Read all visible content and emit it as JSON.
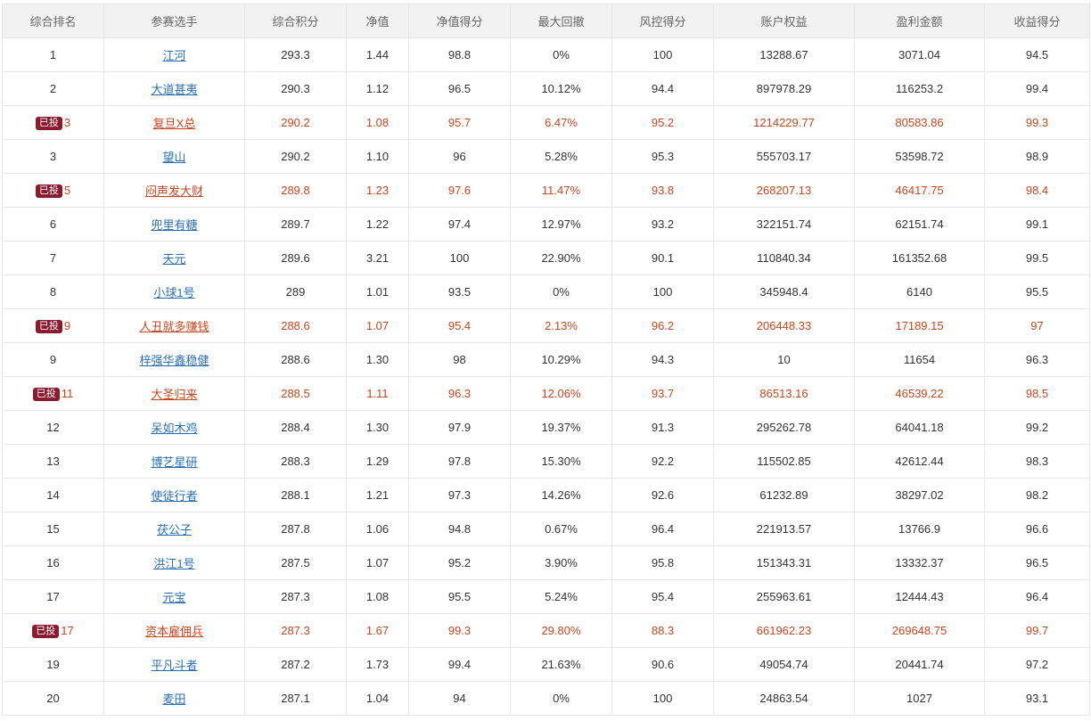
{
  "headers": [
    "综合排名",
    "参赛选手",
    "综合积分",
    "净值",
    "净值得分",
    "最大回撤",
    "风控得分",
    "账户权益",
    "盈利金额",
    "收益得分"
  ],
  "badge_label": "已投",
  "accent_colors": {
    "link": "#2a6fb5",
    "invested_text": "#c9451c",
    "badge_bg": "#8b1a2e",
    "header_bg": "#f2f2f2"
  },
  "rows": [
    {
      "rank": "1",
      "invested": false,
      "player": "江河",
      "score": "293.3",
      "nav": "1.44",
      "nav_score": "98.8",
      "max_drawdown": "0%",
      "risk_score": "100",
      "equity": "13288.67",
      "profit": "3071.04",
      "return_score": "94.5"
    },
    {
      "rank": "2",
      "invested": false,
      "player": "大道甚夷",
      "score": "290.3",
      "nav": "1.12",
      "nav_score": "96.5",
      "max_drawdown": "10.12%",
      "risk_score": "94.4",
      "equity": "897978.29",
      "profit": "116253.2",
      "return_score": "99.4"
    },
    {
      "rank": "3",
      "invested": true,
      "player": "复旦X总",
      "score": "290.2",
      "nav": "1.08",
      "nav_score": "95.7",
      "max_drawdown": "6.47%",
      "risk_score": "95.2",
      "equity": "1214229.77",
      "profit": "80583.86",
      "return_score": "99.3"
    },
    {
      "rank": "3",
      "invested": false,
      "player": "望山",
      "score": "290.2",
      "nav": "1.10",
      "nav_score": "96",
      "max_drawdown": "5.28%",
      "risk_score": "95.3",
      "equity": "555703.17",
      "profit": "53598.72",
      "return_score": "98.9"
    },
    {
      "rank": "5",
      "invested": true,
      "player": "闷声发大财",
      "score": "289.8",
      "nav": "1.23",
      "nav_score": "97.6",
      "max_drawdown": "11.47%",
      "risk_score": "93.8",
      "equity": "268207.13",
      "profit": "46417.75",
      "return_score": "98.4"
    },
    {
      "rank": "6",
      "invested": false,
      "player": "兜里有糖",
      "score": "289.7",
      "nav": "1.22",
      "nav_score": "97.4",
      "max_drawdown": "12.97%",
      "risk_score": "93.2",
      "equity": "322151.74",
      "profit": "62151.74",
      "return_score": "99.1"
    },
    {
      "rank": "7",
      "invested": false,
      "player": "天元",
      "score": "289.6",
      "nav": "3.21",
      "nav_score": "100",
      "max_drawdown": "22.90%",
      "risk_score": "90.1",
      "equity": "110840.34",
      "profit": "161352.68",
      "return_score": "99.5"
    },
    {
      "rank": "8",
      "invested": false,
      "player": "小球1号",
      "score": "289",
      "nav": "1.01",
      "nav_score": "93.5",
      "max_drawdown": "0%",
      "risk_score": "100",
      "equity": "345948.4",
      "profit": "6140",
      "return_score": "95.5"
    },
    {
      "rank": "9",
      "invested": true,
      "player": "人丑就多赚钱",
      "score": "288.6",
      "nav": "1.07",
      "nav_score": "95.4",
      "max_drawdown": "2.13%",
      "risk_score": "96.2",
      "equity": "206448.33",
      "profit": "17189.15",
      "return_score": "97"
    },
    {
      "rank": "9",
      "invested": false,
      "player": "梓强华鑫稳健",
      "score": "288.6",
      "nav": "1.30",
      "nav_score": "98",
      "max_drawdown": "10.29%",
      "risk_score": "94.3",
      "equity": "10",
      "profit": "11654",
      "return_score": "96.3"
    },
    {
      "rank": "11",
      "invested": true,
      "player": "大圣归来",
      "score": "288.5",
      "nav": "1.11",
      "nav_score": "96.3",
      "max_drawdown": "12.06%",
      "risk_score": "93.7",
      "equity": "86513.16",
      "profit": "46539.22",
      "return_score": "98.5"
    },
    {
      "rank": "12",
      "invested": false,
      "player": "呆如木鸡",
      "score": "288.4",
      "nav": "1.30",
      "nav_score": "97.9",
      "max_drawdown": "19.37%",
      "risk_score": "91.3",
      "equity": "295262.78",
      "profit": "64041.18",
      "return_score": "99.2"
    },
    {
      "rank": "13",
      "invested": false,
      "player": "博艺星研",
      "score": "288.3",
      "nav": "1.29",
      "nav_score": "97.8",
      "max_drawdown": "15.30%",
      "risk_score": "92.2",
      "equity": "115502.85",
      "profit": "42612.44",
      "return_score": "98.3"
    },
    {
      "rank": "14",
      "invested": false,
      "player": "使徒行者",
      "score": "288.1",
      "nav": "1.21",
      "nav_score": "97.3",
      "max_drawdown": "14.26%",
      "risk_score": "92.6",
      "equity": "61232.89",
      "profit": "38297.02",
      "return_score": "98.2"
    },
    {
      "rank": "15",
      "invested": false,
      "player": "茯公子",
      "score": "287.8",
      "nav": "1.06",
      "nav_score": "94.8",
      "max_drawdown": "0.67%",
      "risk_score": "96.4",
      "equity": "221913.57",
      "profit": "13766.9",
      "return_score": "96.6"
    },
    {
      "rank": "16",
      "invested": false,
      "player": "洪江1号",
      "score": "287.5",
      "nav": "1.07",
      "nav_score": "95.2",
      "max_drawdown": "3.90%",
      "risk_score": "95.8",
      "equity": "151343.31",
      "profit": "13332.37",
      "return_score": "96.5"
    },
    {
      "rank": "17",
      "invested": false,
      "player": "元宝",
      "score": "287.3",
      "nav": "1.08",
      "nav_score": "95.5",
      "max_drawdown": "5.24%",
      "risk_score": "95.4",
      "equity": "255963.61",
      "profit": "12444.43",
      "return_score": "96.4"
    },
    {
      "rank": "17",
      "invested": true,
      "player": "资本雇佣兵",
      "score": "287.3",
      "nav": "1.67",
      "nav_score": "99.3",
      "max_drawdown": "29.80%",
      "risk_score": "88.3",
      "equity": "661962.23",
      "profit": "269648.75",
      "return_score": "99.7"
    },
    {
      "rank": "19",
      "invested": false,
      "player": "平凡斗者",
      "score": "287.2",
      "nav": "1.73",
      "nav_score": "99.4",
      "max_drawdown": "21.63%",
      "risk_score": "90.6",
      "equity": "49054.74",
      "profit": "20441.74",
      "return_score": "97.2"
    },
    {
      "rank": "20",
      "invested": false,
      "player": "麦田",
      "score": "287.1",
      "nav": "1.04",
      "nav_score": "94",
      "max_drawdown": "0%",
      "risk_score": "100",
      "equity": "24863.54",
      "profit": "1027",
      "return_score": "93.1"
    }
  ]
}
